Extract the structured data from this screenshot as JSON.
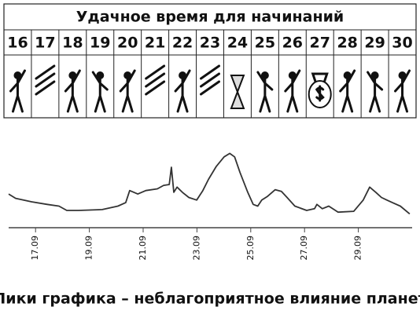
{
  "calendar": {
    "title": "Удачное время для начинаний",
    "days": [
      16,
      17,
      18,
      19,
      20,
      21,
      22,
      23,
      24,
      25,
      26,
      27,
      28,
      29,
      30
    ]
  },
  "chart_data": {
    "type": "line",
    "caption": "Пики графика – неблагоприятное влияние планет",
    "x": [
      16.0,
      16.26,
      16.85,
      17.43,
      17.87,
      18.16,
      18.6,
      19.48,
      20.06,
      20.35,
      20.5,
      20.8,
      21.1,
      21.53,
      21.76,
      21.97,
      22.05,
      22.14,
      22.26,
      22.46,
      22.7,
      22.99,
      23.22,
      23.43,
      23.72,
      24.01,
      24.22,
      24.4,
      24.6,
      24.89,
      25.09,
      25.26,
      25.41,
      25.61,
      25.91,
      26.14,
      26.35,
      26.64,
      27.08,
      27.37,
      27.46,
      27.66,
      27.9,
      28.25,
      28.83,
      29.18,
      29.42,
      29.65,
      29.86,
      30.06,
      30.27,
      30.56,
      30.91
    ],
    "series": [
      {
        "color": "#333333",
        "values": [
          39,
          34,
          30,
          27,
          25,
          20,
          20,
          21,
          25,
          29,
          43,
          39,
          43,
          45,
          49,
          50,
          70,
          41,
          47,
          41,
          35,
          32,
          43,
          56,
          71,
          82,
          86,
          82,
          64,
          41,
          27,
          25,
          32,
          36,
          44,
          42,
          35,
          25,
          20,
          22,
          27,
          22,
          25,
          18,
          19,
          32,
          47,
          41,
          35,
          32,
          29,
          25,
          16
        ]
      }
    ],
    "xlim": [
      16,
      31
    ],
    "xticks": [
      {
        "value": 17,
        "label": "17.09"
      },
      {
        "value": 19,
        "label": "19.09"
      },
      {
        "value": 21,
        "label": "21.09"
      },
      {
        "value": 23,
        "label": "23.09"
      },
      {
        "value": 25,
        "label": "25.09"
      },
      {
        "value": 27,
        "label": "27.09"
      },
      {
        "value": 29,
        "label": "29.09"
      }
    ],
    "ylim": [
      0,
      100
    ]
  }
}
